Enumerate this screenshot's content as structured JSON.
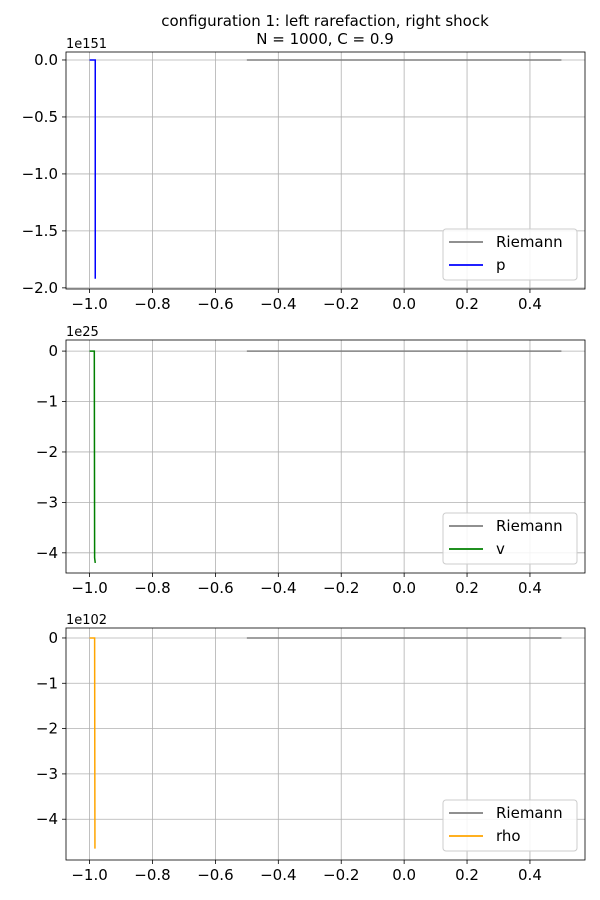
{
  "figure": {
    "title_line1": "configuration 1: left rarefaction, right shock",
    "title_line2": "N = 1000,  C = 0.9"
  },
  "chart_data": [
    {
      "type": "line",
      "id": "p",
      "offset_text": "1e151",
      "xlim": [
        -1.075,
        0.575
      ],
      "ylim": [
        -2.01,
        0.07
      ],
      "xticks": [
        -1.0,
        -0.8,
        -0.6,
        -0.4,
        -0.2,
        0.0,
        0.2,
        0.4
      ],
      "xtick_labels": [
        "−1.0",
        "−0.8",
        "−0.6",
        "−0.4",
        "−0.2",
        "0.0",
        "0.2",
        "0.4"
      ],
      "yticks": [
        0.0,
        -0.5,
        -1.0,
        -1.5,
        -2.0
      ],
      "ytick_labels": [
        "0.0",
        "−0.5",
        "−1.0",
        "−1.5",
        "−2.0"
      ],
      "grid": true,
      "legend_position": "lower-right",
      "series": [
        {
          "name": "Riemann",
          "color": "#808080",
          "points": [
            [
              -0.5,
              0.0
            ],
            [
              0.5,
              0.0
            ]
          ]
        },
        {
          "name": "p",
          "color": "#0000ff",
          "points": [
            [
              -1.0,
              0.0
            ],
            [
              -0.982,
              0.0
            ],
            [
              -0.982,
              -1.92
            ]
          ]
        }
      ]
    },
    {
      "type": "line",
      "id": "v",
      "offset_text": "1e25",
      "xlim": [
        -1.075,
        0.575
      ],
      "ylim": [
        -4.4,
        0.22
      ],
      "xticks": [
        -1.0,
        -0.8,
        -0.6,
        -0.4,
        -0.2,
        0.0,
        0.2,
        0.4
      ],
      "xtick_labels": [
        "−1.0",
        "−0.8",
        "−0.6",
        "−0.4",
        "−0.2",
        "0.0",
        "0.2",
        "0.4"
      ],
      "yticks": [
        0,
        -1,
        -2,
        -3,
        -4
      ],
      "ytick_labels": [
        "0",
        "−1",
        "−2",
        "−3",
        "−4"
      ],
      "grid": true,
      "legend_position": "lower-right",
      "series": [
        {
          "name": "Riemann",
          "color": "#808080",
          "points": [
            [
              -0.5,
              0.0
            ],
            [
              0.5,
              0.0
            ]
          ]
        },
        {
          "name": "v",
          "color": "#008000",
          "points": [
            [
              -1.0,
              0.0
            ],
            [
              -0.985,
              0.0
            ],
            [
              -0.984,
              -4.1
            ],
            [
              -0.982,
              -4.2
            ]
          ]
        }
      ]
    },
    {
      "type": "line",
      "id": "rho",
      "offset_text": "1e102",
      "xlim": [
        -1.075,
        0.575
      ],
      "ylim": [
        -4.9,
        0.22
      ],
      "xticks": [
        -1.0,
        -0.8,
        -0.6,
        -0.4,
        -0.2,
        0.0,
        0.2,
        0.4
      ],
      "xtick_labels": [
        "−1.0",
        "−0.8",
        "−0.6",
        "−0.4",
        "−0.2",
        "0.0",
        "0.2",
        "0.4"
      ],
      "yticks": [
        0,
        -1,
        -2,
        -3,
        -4
      ],
      "ytick_labels": [
        "0",
        "−1",
        "−2",
        "−3",
        "−4"
      ],
      "grid": true,
      "legend_position": "lower-right",
      "series": [
        {
          "name": "Riemann",
          "color": "#808080",
          "points": [
            [
              -0.5,
              0.0
            ],
            [
              0.5,
              0.0
            ]
          ]
        },
        {
          "name": "rho",
          "color": "#ffa500",
          "points": [
            [
              -1.0,
              0.0
            ],
            [
              -0.984,
              0.0
            ],
            [
              -0.983,
              -4.65
            ]
          ]
        }
      ]
    }
  ]
}
